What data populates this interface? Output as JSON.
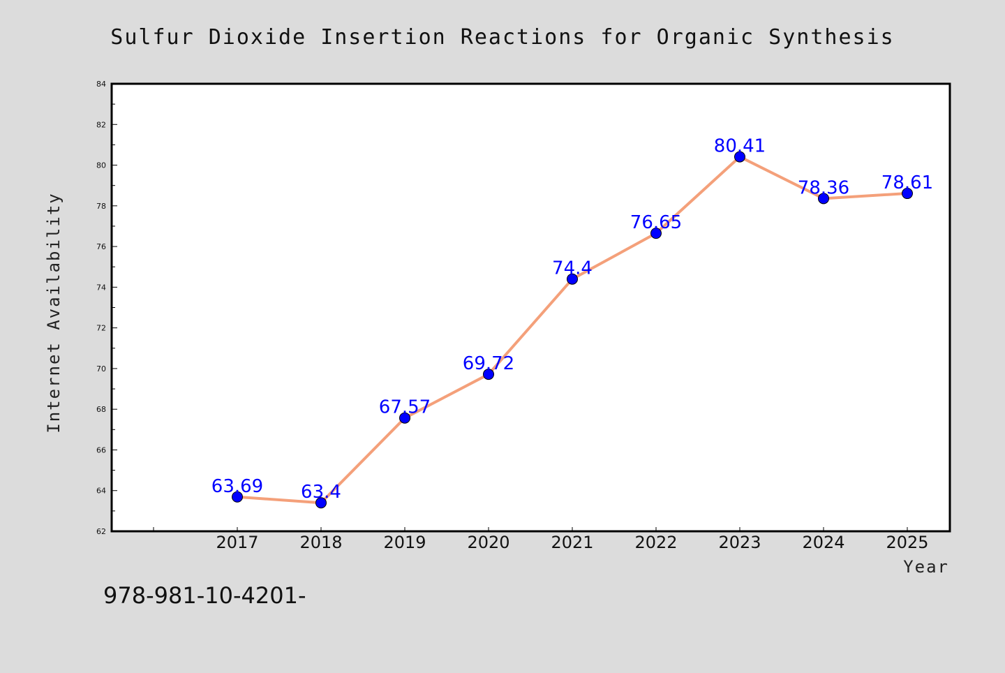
{
  "colors": {
    "background": "#dcdcdc",
    "plot_background": "#ffffff",
    "line": "#f4a07a",
    "marker": "#0000ff",
    "data_label": "#0000ff"
  },
  "footer_text": "978-981-10-4201-",
  "chart_data": {
    "type": "line",
    "title": "Sulfur Dioxide Insertion Reactions for Organic Synthesis",
    "xlabel": "Year",
    "ylabel": "Internet Availability",
    "categories": [
      "2017",
      "2018",
      "2019",
      "2020",
      "2021",
      "2022",
      "2023",
      "2024",
      "2025"
    ],
    "values": [
      63.69,
      63.4,
      67.57,
      69.72,
      74.4,
      76.65,
      80.41,
      78.36,
      78.61
    ],
    "data_labels": [
      "63.69",
      "63.4",
      "67.57",
      "69.72",
      "74.4",
      "76.65",
      "80.41",
      "78.36",
      "78.61"
    ],
    "ylim": [
      62,
      84
    ],
    "yticks": [
      "62",
      "64",
      "66",
      "68",
      "70",
      "72",
      "74",
      "76",
      "78",
      "80",
      "82",
      "84"
    ],
    "grid": false,
    "legend": "none"
  }
}
